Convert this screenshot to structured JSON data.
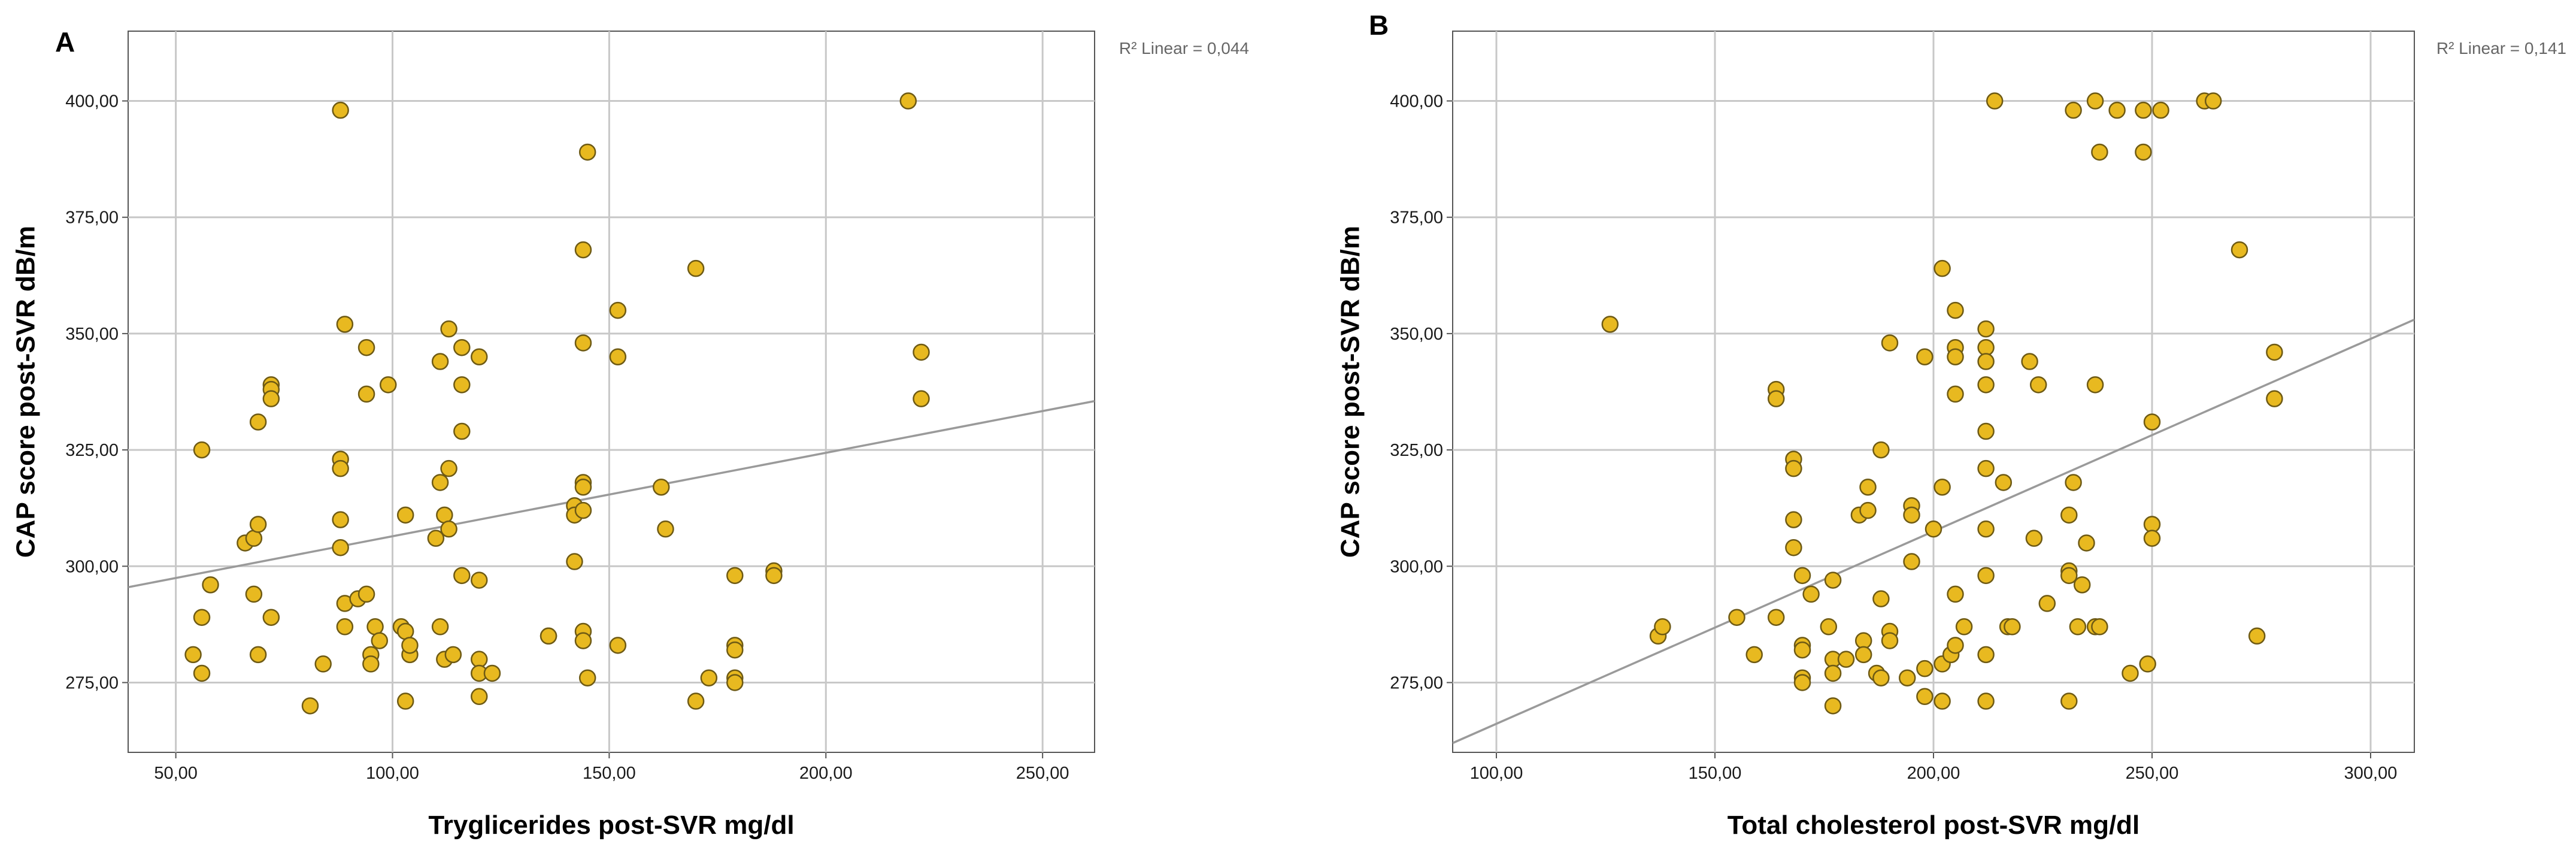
{
  "chart_data": [
    {
      "type": "scatter",
      "panel_label": "A",
      "xlabel": "Tryglicerides post-SVR mg/dl",
      "ylabel": "CAP score post-SVR dB/m",
      "xlim": [
        39,
        262
      ],
      "ylim": [
        260,
        415
      ],
      "xticks": [
        50,
        100,
        150,
        200,
        250
      ],
      "xtick_labels": [
        "50,00",
        "100,00",
        "150,00",
        "200,00",
        "250,00"
      ],
      "yticks": [
        275,
        300,
        325,
        350,
        375,
        400
      ],
      "ytick_labels": [
        "275,00",
        "300,00",
        "325,00",
        "350,00",
        "375,00",
        "400,00"
      ],
      "grid": true,
      "r2_label": "R² Linear = 0,044",
      "fit_line": {
        "x": [
          39,
          262
        ],
        "y": [
          295.5,
          335.5
        ]
      },
      "points": [
        [
          54,
          281
        ],
        [
          56,
          325
        ],
        [
          56,
          289
        ],
        [
          56,
          277
        ],
        [
          58,
          296
        ],
        [
          66,
          305
        ],
        [
          68,
          294
        ],
        [
          68,
          306
        ],
        [
          69,
          309
        ],
        [
          69,
          331
        ],
        [
          69,
          281
        ],
        [
          72,
          339
        ],
        [
          72,
          338
        ],
        [
          72,
          336
        ],
        [
          72,
          289
        ],
        [
          81,
          270
        ],
        [
          84,
          279
        ],
        [
          88,
          398
        ],
        [
          88,
          323
        ],
        [
          88,
          321
        ],
        [
          88,
          310
        ],
        [
          88,
          304
        ],
        [
          89,
          352
        ],
        [
          89,
          292
        ],
        [
          89,
          287
        ],
        [
          92,
          293
        ],
        [
          94,
          347
        ],
        [
          94,
          337
        ],
        [
          94,
          294
        ],
        [
          95,
          281
        ],
        [
          95,
          279
        ],
        [
          96,
          287
        ],
        [
          97,
          284
        ],
        [
          99,
          339
        ],
        [
          102,
          287
        ],
        [
          103,
          286
        ],
        [
          103,
          311
        ],
        [
          103,
          271
        ],
        [
          104,
          281
        ],
        [
          104,
          283
        ],
        [
          110,
          306
        ],
        [
          111,
          344
        ],
        [
          111,
          318
        ],
        [
          111,
          287
        ],
        [
          112,
          311
        ],
        [
          112,
          280
        ],
        [
          113,
          351
        ],
        [
          113,
          321
        ],
        [
          113,
          308
        ],
        [
          114,
          281
        ],
        [
          116,
          347
        ],
        [
          116,
          339
        ],
        [
          116,
          329
        ],
        [
          116,
          298
        ],
        [
          120,
          345
        ],
        [
          120,
          297
        ],
        [
          120,
          280
        ],
        [
          120,
          277
        ],
        [
          120,
          272
        ],
        [
          123,
          277
        ],
        [
          136,
          285
        ],
        [
          136,
          285
        ],
        [
          142,
          313
        ],
        [
          142,
          301
        ],
        [
          142,
          311
        ],
        [
          144,
          368
        ],
        [
          144,
          348
        ],
        [
          144,
          318
        ],
        [
          144,
          317
        ],
        [
          144,
          312
        ],
        [
          144,
          286
        ],
        [
          144,
          284
        ],
        [
          145,
          389
        ],
        [
          145,
          276
        ],
        [
          152,
          355
        ],
        [
          152,
          345
        ],
        [
          152,
          283
        ],
        [
          162,
          317
        ],
        [
          163,
          308
        ],
        [
          170,
          364
        ],
        [
          170,
          271
        ],
        [
          173,
          276
        ],
        [
          179,
          298
        ],
        [
          179,
          283
        ],
        [
          179,
          282
        ],
        [
          179,
          276
        ],
        [
          179,
          275
        ],
        [
          188,
          299
        ],
        [
          188,
          298
        ],
        [
          219,
          400
        ],
        [
          222,
          346
        ],
        [
          222,
          336
        ]
      ]
    },
    {
      "type": "scatter",
      "panel_label": "B",
      "xlabel": "Total cholesterol post-SVR mg/dl",
      "ylabel": "CAP score post-SVR dB/m",
      "xlim": [
        90,
        310
      ],
      "ylim": [
        260,
        415
      ],
      "xticks": [
        100,
        150,
        200,
        250,
        300
      ],
      "xtick_labels": [
        "100,00",
        "150,00",
        "200,00",
        "250,00",
        "300,00"
      ],
      "yticks": [
        275,
        300,
        325,
        350,
        375,
        400
      ],
      "ytick_labels": [
        "275,00",
        "300,00",
        "325,00",
        "350,00",
        "375,00",
        "400,00"
      ],
      "grid": true,
      "r2_label": "R² Linear = 0,141",
      "fit_line": {
        "x": [
          90,
          310
        ],
        "y": [
          262,
          353
        ]
      },
      "points": [
        [
          126,
          352
        ],
        [
          137,
          285
        ],
        [
          138,
          287
        ],
        [
          155,
          289
        ],
        [
          159,
          281
        ],
        [
          164,
          338
        ],
        [
          164,
          336
        ],
        [
          164,
          289
        ],
        [
          168,
          323
        ],
        [
          168,
          321
        ],
        [
          168,
          310
        ],
        [
          168,
          304
        ],
        [
          170,
          298
        ],
        [
          170,
          283
        ],
        [
          170,
          282
        ],
        [
          170,
          276
        ],
        [
          170,
          275
        ],
        [
          172,
          294
        ],
        [
          176,
          287
        ],
        [
          177,
          297
        ],
        [
          177,
          280
        ],
        [
          177,
          277
        ],
        [
          177,
          270
        ],
        [
          180,
          280
        ],
        [
          183,
          311
        ],
        [
          184,
          284
        ],
        [
          184,
          281
        ],
        [
          185,
          317
        ],
        [
          185,
          312
        ],
        [
          187,
          277
        ],
        [
          188,
          325
        ],
        [
          188,
          293
        ],
        [
          188,
          276
        ],
        [
          190,
          348
        ],
        [
          190,
          286
        ],
        [
          190,
          284
        ],
        [
          194,
          276
        ],
        [
          195,
          313
        ],
        [
          195,
          311
        ],
        [
          195,
          301
        ],
        [
          198,
          345
        ],
        [
          198,
          278
        ],
        [
          198,
          272
        ],
        [
          200,
          308
        ],
        [
          202,
          364
        ],
        [
          202,
          317
        ],
        [
          202,
          279
        ],
        [
          202,
          271
        ],
        [
          204,
          281
        ],
        [
          205,
          355
        ],
        [
          205,
          347
        ],
        [
          205,
          345
        ],
        [
          205,
          337
        ],
        [
          205,
          294
        ],
        [
          205,
          283
        ],
        [
          207,
          287
        ],
        [
          212,
          351
        ],
        [
          212,
          347
        ],
        [
          212,
          344
        ],
        [
          212,
          339
        ],
        [
          212,
          329
        ],
        [
          212,
          321
        ],
        [
          212,
          308
        ],
        [
          212,
          298
        ],
        [
          212,
          281
        ],
        [
          212,
          271
        ],
        [
          214,
          400
        ],
        [
          216,
          318
        ],
        [
          217,
          287
        ],
        [
          218,
          287
        ],
        [
          222,
          344
        ],
        [
          223,
          306
        ],
        [
          224,
          339
        ],
        [
          226,
          292
        ],
        [
          231,
          299
        ],
        [
          231,
          298
        ],
        [
          231,
          311
        ],
        [
          231,
          271
        ],
        [
          232,
          318
        ],
        [
          232,
          398
        ],
        [
          233,
          287
        ],
        [
          234,
          296
        ],
        [
          235,
          305
        ],
        [
          237,
          400
        ],
        [
          237,
          339
        ],
        [
          237,
          287
        ],
        [
          238,
          389
        ],
        [
          238,
          287
        ],
        [
          242,
          398
        ],
        [
          245,
          277
        ],
        [
          248,
          389
        ],
        [
          248,
          398
        ],
        [
          249,
          279
        ],
        [
          250,
          331
        ],
        [
          250,
          309
        ],
        [
          250,
          306
        ],
        [
          252,
          398
        ],
        [
          262,
          400
        ],
        [
          264,
          400
        ],
        [
          270,
          368
        ],
        [
          274,
          285
        ],
        [
          278,
          346
        ],
        [
          278,
          336
        ]
      ]
    }
  ]
}
